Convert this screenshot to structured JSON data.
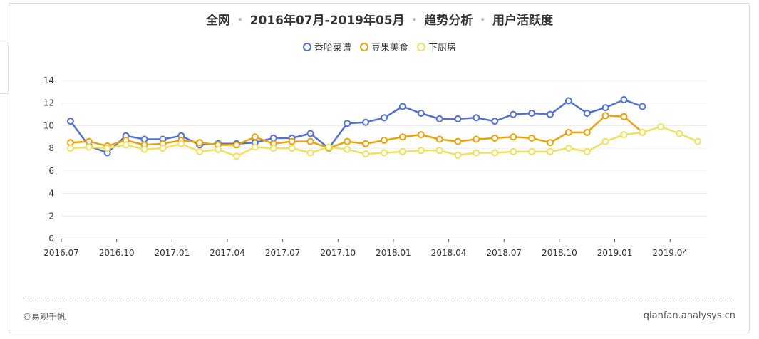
{
  "header": {
    "title_parts": [
      "全网",
      "2016年07月-2019年05月",
      "趋势分析",
      "用户活跃度"
    ],
    "separator": "•"
  },
  "footer": {
    "copyright": "©易观千帆",
    "site": "qianfan.analysys.cn"
  },
  "chart_data": {
    "type": "line",
    "title": "全网 • 2016年07月-2019年05月 • 趋势分析 • 用户活跃度",
    "xlabel": "",
    "ylabel": "",
    "ylim": [
      0,
      14
    ],
    "yticks": [
      0,
      2,
      4,
      6,
      8,
      10,
      12,
      14
    ],
    "grid": true,
    "legend_position": "top-center",
    "x_tick_labels": [
      "2016.07",
      "2016.10",
      "2017.01",
      "2017.04",
      "2017.07",
      "2017.10",
      "2018.01",
      "2018.04",
      "2018.07",
      "2018.10",
      "2019.01",
      "2019.04"
    ],
    "categories": [
      "2016.07",
      "2016.08",
      "2016.09",
      "2016.10",
      "2016.11",
      "2016.12",
      "2017.01",
      "2017.02",
      "2017.03",
      "2017.04",
      "2017.05",
      "2017.06",
      "2017.07",
      "2017.08",
      "2017.09",
      "2017.10",
      "2017.11",
      "2017.12",
      "2018.01",
      "2018.02",
      "2018.03",
      "2018.04",
      "2018.05",
      "2018.06",
      "2018.07",
      "2018.08",
      "2018.09",
      "2018.10",
      "2018.11",
      "2018.12",
      "2019.01",
      "2019.02",
      "2019.03",
      "2019.04",
      "2019.05"
    ],
    "series": [
      {
        "name": "香哈菜谱",
        "color": "#5470d0",
        "values": [
          10.4,
          8.2,
          7.6,
          9.1,
          8.8,
          8.8,
          9.1,
          8.3,
          8.4,
          8.4,
          8.5,
          8.9,
          8.9,
          9.3,
          8.0,
          10.2,
          10.3,
          10.7,
          11.7,
          11.1,
          10.6,
          10.6,
          10.7,
          10.4,
          11.0,
          11.1,
          11.0,
          12.2,
          11.1,
          11.6,
          12.3,
          11.7,
          null,
          null,
          null
        ]
      },
      {
        "name": "豆果美食",
        "color": "#e8a20c",
        "values": [
          8.5,
          8.6,
          8.2,
          8.7,
          8.3,
          8.4,
          8.7,
          8.5,
          8.3,
          8.3,
          9.0,
          8.4,
          8.6,
          8.6,
          8.0,
          8.6,
          8.4,
          8.7,
          9.0,
          9.2,
          8.8,
          8.6,
          8.8,
          8.9,
          9.0,
          8.9,
          8.5,
          9.4,
          9.4,
          10.9,
          10.8,
          9.4,
          null,
          null,
          null
        ]
      },
      {
        "name": "下厨房",
        "color": "#f0e060",
        "values": [
          8.0,
          8.1,
          8.0,
          8.3,
          7.9,
          8.0,
          8.4,
          7.7,
          7.9,
          7.3,
          8.1,
          8.0,
          8.0,
          7.6,
          8.1,
          7.9,
          7.5,
          7.6,
          7.7,
          7.8,
          7.8,
          7.4,
          7.6,
          7.6,
          7.7,
          7.7,
          7.7,
          8.0,
          7.7,
          8.6,
          9.2,
          9.4,
          9.9,
          9.3,
          8.6
        ]
      }
    ]
  }
}
